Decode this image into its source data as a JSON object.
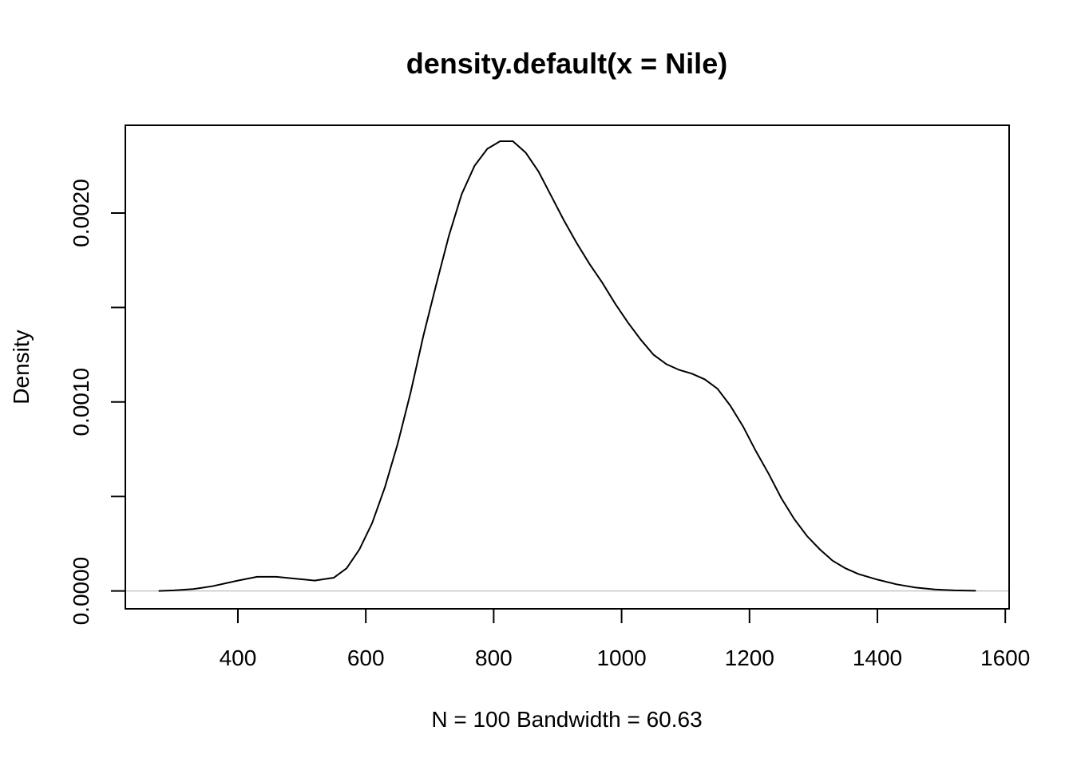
{
  "chart_data": {
    "type": "line",
    "title": "density.default(x = Nile)",
    "xlabel": "N = 100   Bandwidth = 60.63",
    "ylabel": "Density",
    "xlim": [
      224,
      1606
    ],
    "ylim": [
      -9.45e-05,
      0.0024645
    ],
    "x_ticks": [
      400,
      600,
      800,
      1000,
      1200,
      1400,
      1600
    ],
    "x_tick_labels": [
      "400",
      "600",
      "800",
      "1000",
      "1200",
      "1400",
      "1600"
    ],
    "y_ticks": [
      0,
      0.0005,
      0.001,
      0.0015,
      0.002
    ],
    "y_tick_labels": [
      "0.0000",
      "",
      "0.0010",
      "",
      "0.0020"
    ],
    "baseline": 0,
    "grid": false,
    "series": [
      {
        "x": [
          276,
          300,
          330,
          360,
          400,
          430,
          460,
          490,
          520,
          550,
          570,
          590,
          610,
          630,
          650,
          670,
          690,
          710,
          730,
          750,
          770,
          790,
          810,
          830,
          850,
          870,
          890,
          910,
          930,
          950,
          970,
          990,
          1010,
          1030,
          1050,
          1070,
          1090,
          1110,
          1130,
          1150,
          1170,
          1190,
          1210,
          1230,
          1250,
          1270,
          1290,
          1310,
          1330,
          1350,
          1370,
          1400,
          1430,
          1460,
          1490,
          1520,
          1554
        ],
        "y": [
          0,
          3e-06,
          1e-05,
          2.5e-05,
          5.5e-05,
          7.5e-05,
          7.5e-05,
          6.5e-05,
          5.5e-05,
          7e-05,
          0.00012,
          0.00022,
          0.00036,
          0.00055,
          0.00078,
          0.00105,
          0.00135,
          0.00162,
          0.00188,
          0.0021,
          0.00225,
          0.00234,
          0.00238,
          0.00238,
          0.00232,
          0.00222,
          0.00209,
          0.00196,
          0.00184,
          0.00173,
          0.00163,
          0.00152,
          0.00142,
          0.00133,
          0.00125,
          0.0012,
          0.00117,
          0.00115,
          0.00112,
          0.00107,
          0.00098,
          0.00087,
          0.00074,
          0.00062,
          0.00049,
          0.00038,
          0.00029,
          0.00022,
          0.00016,
          0.00012,
          9e-05,
          6e-05,
          3.5e-05,
          1.8e-05,
          8e-06,
          3e-06,
          1e-06
        ]
      }
    ]
  }
}
